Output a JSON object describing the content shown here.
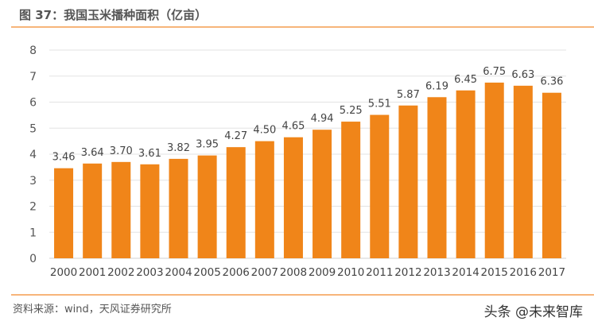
{
  "title": "图 37：我国玉米播种面积（亿亩）",
  "source": "资料来源：wind，天风证券研究所",
  "watermark": "头条 @未来智库",
  "colors": {
    "bar": "#f08519",
    "accent_line": "#f7b57a"
  },
  "chart_data": {
    "type": "bar",
    "title": "图 37：我国玉米播种面积（亿亩）",
    "categories": [
      "2000",
      "2001",
      "2002",
      "2003",
      "2004",
      "2005",
      "2006",
      "2007",
      "2008",
      "2009",
      "2010",
      "2011",
      "2012",
      "2013",
      "2014",
      "2015",
      "2016",
      "2017"
    ],
    "values": [
      3.46,
      3.64,
      3.7,
      3.61,
      3.82,
      3.95,
      4.27,
      4.5,
      4.65,
      4.94,
      5.25,
      5.51,
      5.87,
      6.19,
      6.45,
      6.75,
      6.63,
      6.36
    ],
    "labels": [
      "3.46",
      "3.64",
      "3.70",
      "3.61",
      "3.82",
      "3.95",
      "4.27",
      "4.50",
      "4.65",
      "4.94",
      "5.25",
      "5.51",
      "5.87",
      "6.19",
      "6.45",
      "6.75",
      "6.63",
      "6.36"
    ],
    "yticks": [
      "0",
      "1",
      "2",
      "3",
      "4",
      "5",
      "6",
      "7",
      "8"
    ],
    "ylim": [
      0,
      8
    ],
    "grid": true,
    "legend": "none"
  }
}
